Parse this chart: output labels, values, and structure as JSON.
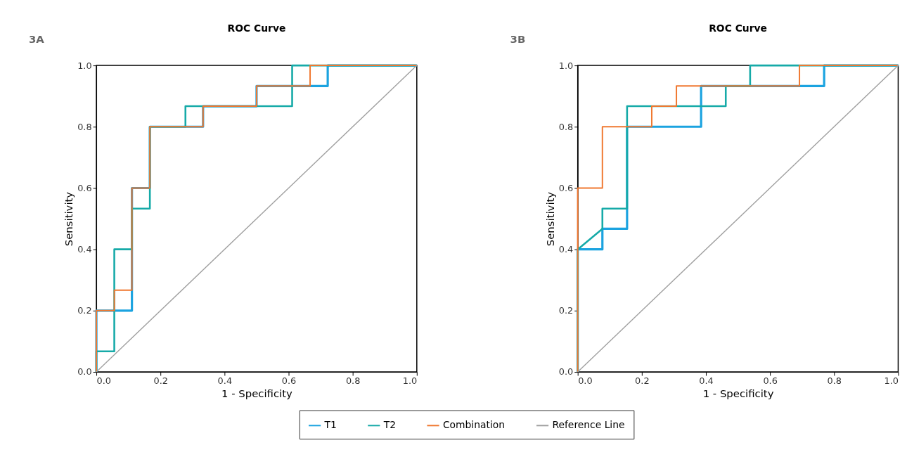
{
  "chart_data": [
    {
      "type": "line",
      "title": "ROC Curve",
      "xlabel": "1 - Specificity",
      "ylabel": "Sensitivity",
      "annotations": [
        "3A"
      ],
      "legend": "bottom",
      "grid": false,
      "marker": "none",
      "line_style": "solid",
      "xlim": [
        0,
        1
      ],
      "ylim": [
        0,
        1
      ],
      "xticks": [
        {
          "value": 0,
          "label": "0.0"
        },
        {
          "value": 0.2,
          "label": "0.2"
        },
        {
          "value": 0.4,
          "label": "0.4"
        },
        {
          "value": 0.6,
          "label": "0.6"
        },
        {
          "value": 0.8,
          "label": "0.8"
        },
        {
          "value": 1,
          "label": "1.0"
        }
      ],
      "yticks": [
        {
          "value": 0,
          "label": "0.0"
        },
        {
          "value": 0.2,
          "label": "0.2"
        },
        {
          "value": 0.4,
          "label": "0.4"
        },
        {
          "value": 0.6,
          "label": "0.6"
        },
        {
          "value": 0.8,
          "label": "0.8"
        },
        {
          "value": 1,
          "label": "1.0"
        }
      ],
      "series": [
        {
          "name": "T1",
          "color": "#1ba3e0",
          "x": [
            0,
            0,
            0.111,
            0.111,
            0.167,
            0.167,
            0.333,
            0.333,
            0.5,
            0.5,
            0.722,
            0.722,
            1
          ],
          "values": [
            0,
            0.2,
            0.2,
            0.6,
            0.6,
            0.8,
            0.8,
            0.867,
            0.867,
            0.933,
            0.933,
            1,
            1
          ]
        },
        {
          "name": "T2",
          "color": "#16aaa8",
          "x": [
            0,
            0,
            0.056,
            0.056,
            0.111,
            0.111,
            0.167,
            0.167,
            0.278,
            0.278,
            0.611,
            0.611,
            1
          ],
          "values": [
            0,
            0.067,
            0.067,
            0.4,
            0.4,
            0.533,
            0.533,
            0.8,
            0.8,
            0.867,
            0.867,
            1,
            1
          ]
        },
        {
          "name": "Combination",
          "color": "#f07830",
          "x": [
            0,
            0,
            0.056,
            0.056,
            0.111,
            0.111,
            0.167,
            0.167,
            0.333,
            0.333,
            0.5,
            0.5,
            0.667,
            0.667,
            1
          ],
          "values": [
            0,
            0.2,
            0.2,
            0.267,
            0.267,
            0.6,
            0.6,
            0.8,
            0.8,
            0.867,
            0.867,
            0.933,
            0.933,
            1,
            1
          ]
        },
        {
          "name": "Reference Line",
          "color": "#a0a0a0",
          "x": [
            0,
            1
          ],
          "values": [
            0,
            1
          ]
        }
      ]
    },
    {
      "type": "line",
      "title": "ROC Curve",
      "xlabel": "1 - Specificity",
      "ylabel": "Sensitivity",
      "annotations": [
        "3B"
      ],
      "legend": "bottom",
      "grid": false,
      "marker": "none",
      "line_style": "solid",
      "xlim": [
        0,
        1
      ],
      "ylim": [
        0,
        1
      ],
      "xticks": [
        {
          "value": 0,
          "label": "0.0"
        },
        {
          "value": 0.2,
          "label": "0.2"
        },
        {
          "value": 0.4,
          "label": "0.4"
        },
        {
          "value": 0.6,
          "label": "0.6"
        },
        {
          "value": 0.8,
          "label": "0.8"
        },
        {
          "value": 1,
          "label": "1.0"
        }
      ],
      "yticks": [
        {
          "value": 0,
          "label": "0.0"
        },
        {
          "value": 0.2,
          "label": "0.2"
        },
        {
          "value": 0.4,
          "label": "0.4"
        },
        {
          "value": 0.6,
          "label": "0.6"
        },
        {
          "value": 0.8,
          "label": "0.8"
        },
        {
          "value": 1,
          "label": "1.0"
        }
      ],
      "series": [
        {
          "name": "T1",
          "color": "#1ba3e0",
          "x": [
            0,
            0,
            0.077,
            0.077,
            0.154,
            0.154,
            0.385,
            0.385,
            0.769,
            0.769,
            1
          ],
          "values": [
            0,
            0.4,
            0.4,
            0.467,
            0.467,
            0.8,
            0.8,
            0.933,
            0.933,
            1,
            1
          ]
        },
        {
          "name": "T2",
          "color": "#16aaa8",
          "x": [
            0,
            0,
            0.077,
            0.077,
            0.154,
            0.154,
            0.462,
            0.462,
            0.538,
            0.538,
            1
          ],
          "values": [
            0,
            0.4,
            0.467,
            0.533,
            0.533,
            0.867,
            0.867,
            0.933,
            0.933,
            1,
            1
          ]
        },
        {
          "name": "Combination",
          "color": "#f07830",
          "x": [
            0,
            0,
            0.077,
            0.077,
            0.231,
            0.231,
            0.308,
            0.308,
            0.692,
            0.692,
            1
          ],
          "values": [
            0,
            0.6,
            0.6,
            0.8,
            0.8,
            0.867,
            0.867,
            0.933,
            0.933,
            1,
            1
          ]
        },
        {
          "name": "Reference Line",
          "color": "#a0a0a0",
          "x": [
            0,
            1
          ],
          "values": [
            0,
            1
          ]
        }
      ]
    }
  ]
}
